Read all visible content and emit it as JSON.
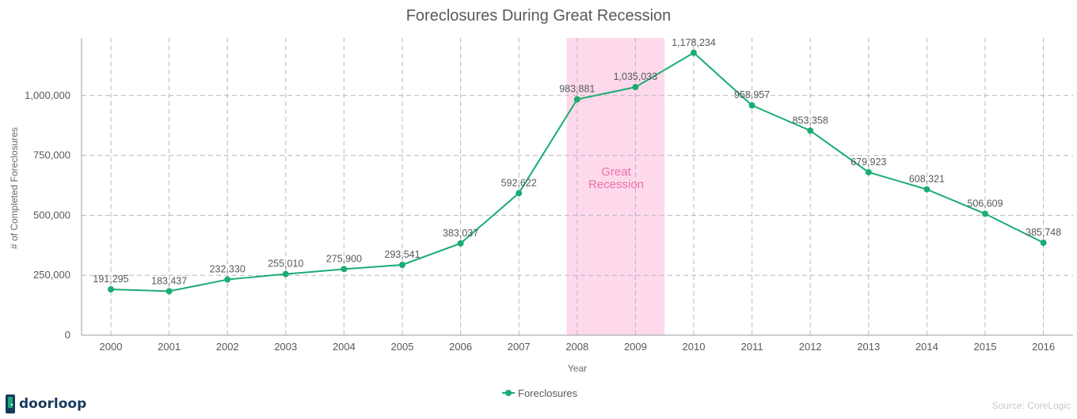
{
  "chart_data": {
    "type": "line",
    "title": "Foreclosures During Great Recession",
    "xlabel": "Year",
    "ylabel": "# of Completed Foreclosures",
    "x": [
      "2000",
      "2001",
      "2002",
      "2003",
      "2004",
      "2005",
      "2006",
      "2007",
      "2008",
      "2009",
      "2010",
      "2011",
      "2012",
      "2013",
      "2014",
      "2015",
      "2016"
    ],
    "series": [
      {
        "name": "Foreclosures",
        "color": "#1aad72",
        "values": [
          191295,
          183437,
          232330,
          255010,
          275900,
          293541,
          383037,
          592622,
          983881,
          1035033,
          1178234,
          958957,
          853358,
          679923,
          608321,
          506609,
          385748
        ],
        "labels": [
          "191,295",
          "183,437",
          "232,330",
          "255,010",
          "275,900",
          "293,541",
          "383,037",
          "592,622",
          "983,881",
          "1,035,033",
          "1,178,234",
          "958,957",
          "853,358",
          "679,923",
          "608,321",
          "506,609",
          "385,748"
        ]
      }
    ],
    "ylim": [
      0,
      1250000
    ],
    "yticks": [
      0,
      250000,
      500000,
      750000,
      1000000
    ],
    "ytick_labels": [
      "0",
      "250,000",
      "500,000",
      "750,000",
      "1,000,000"
    ],
    "grid": true,
    "legend_position": "bottom-center",
    "band": {
      "label_line1": "Great",
      "label_line2": "Recession",
      "from_year_index": 7.82,
      "to_year_index": 9.5,
      "color": "#fdd9eb",
      "label_color": "#ec6fa4"
    }
  },
  "source": "Source: CoreLogic",
  "brand": {
    "name": "doorloop",
    "color": "#173b5e",
    "accent": "#1aad72"
  }
}
